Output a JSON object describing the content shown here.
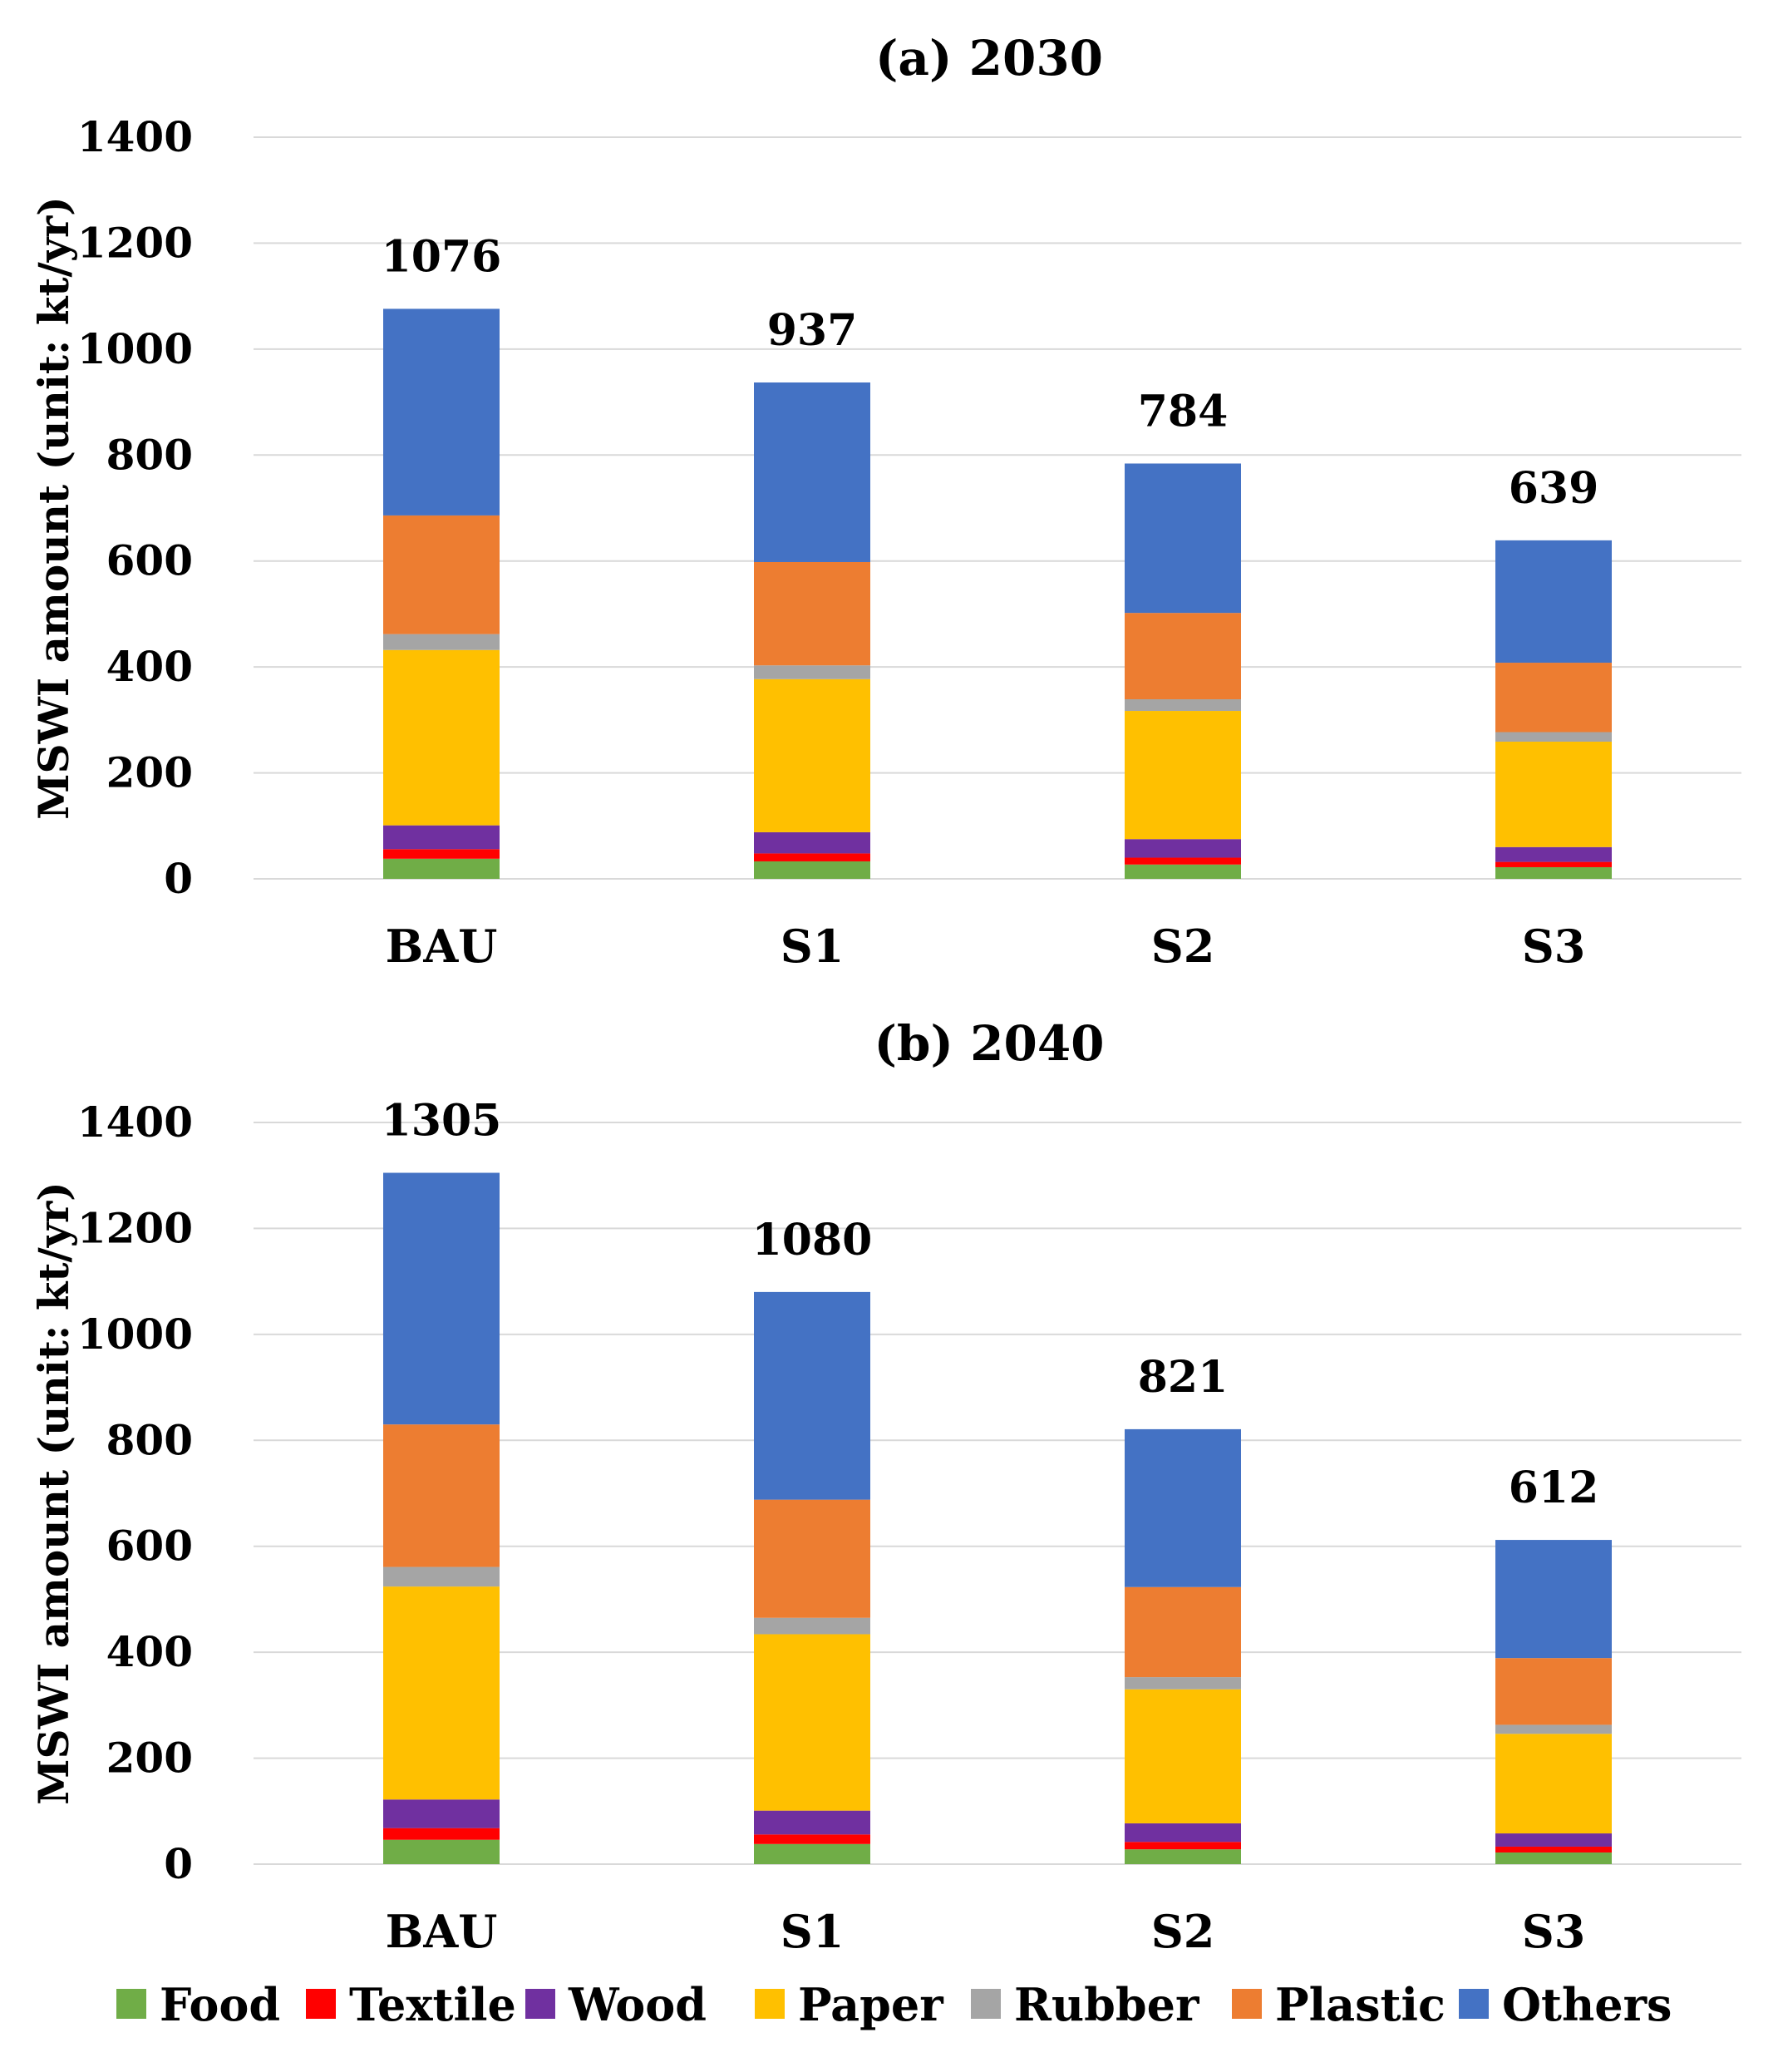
{
  "chart_data": [
    {
      "type": "bar",
      "stacked": true,
      "title": "(a) 2030",
      "xlabel": "",
      "ylabel": "MSWI amount (unit: kt/yr)",
      "ylim": [
        0,
        1400
      ],
      "yticks": [
        0,
        200,
        400,
        600,
        800,
        1000,
        1200,
        1400
      ],
      "grid": true,
      "categories": [
        "BAU",
        "S1",
        "S2",
        "S3"
      ],
      "totals": [
        "1076",
        "937",
        "784",
        "639"
      ],
      "series": [
        {
          "name": "Food",
          "color": "#70ad47",
          "values": [
            38,
            33,
            27,
            22
          ]
        },
        {
          "name": "Textile",
          "color": "#ff0000",
          "values": [
            18,
            15,
            13,
            10
          ]
        },
        {
          "name": "Wood",
          "color": "#7030a0",
          "values": [
            45,
            40,
            35,
            28
          ]
        },
        {
          "name": "Paper",
          "color": "#ffc000",
          "values": [
            331,
            289,
            242,
            199
          ]
        },
        {
          "name": "Rubber",
          "color": "#a5a5a5",
          "values": [
            30,
            26,
            22,
            18
          ]
        },
        {
          "name": "Plastic",
          "color": "#ed7d31",
          "values": [
            224,
            195,
            163,
            131
          ]
        },
        {
          "name": "Others",
          "color": "#4472c4",
          "values": [
            390,
            339,
            282,
            231
          ]
        }
      ]
    },
    {
      "type": "bar",
      "stacked": true,
      "title": "(b) 2040",
      "xlabel": "",
      "ylabel": "MSWI amount (unit: kt/yr)",
      "ylim": [
        0,
        1400
      ],
      "yticks": [
        0,
        200,
        400,
        600,
        800,
        1000,
        1200,
        1400
      ],
      "grid": true,
      "categories": [
        "BAU",
        "S1",
        "S2",
        "S3"
      ],
      "totals": [
        "1305",
        "1080",
        "821",
        "612"
      ],
      "series": [
        {
          "name": "Food",
          "color": "#70ad47",
          "values": [
            46,
            38,
            28,
            22
          ]
        },
        {
          "name": "Textile",
          "color": "#ff0000",
          "values": [
            22,
            18,
            14,
            11
          ]
        },
        {
          "name": "Wood",
          "color": "#7030a0",
          "values": [
            54,
            45,
            35,
            25
          ]
        },
        {
          "name": "Paper",
          "color": "#ffc000",
          "values": [
            402,
            333,
            253,
            188
          ]
        },
        {
          "name": "Rubber",
          "color": "#a5a5a5",
          "values": [
            37,
            31,
            23,
            17
          ]
        },
        {
          "name": "Plastic",
          "color": "#ed7d31",
          "values": [
            269,
            223,
            170,
            126
          ]
        },
        {
          "name": "Others",
          "color": "#4472c4",
          "values": [
            475,
            392,
            298,
            223
          ]
        }
      ]
    }
  ],
  "legend": {
    "position": "bottom",
    "items": [
      "Food",
      "Textile",
      "Wood",
      "Paper",
      "Rubber",
      "Plastic",
      "Others"
    ]
  }
}
